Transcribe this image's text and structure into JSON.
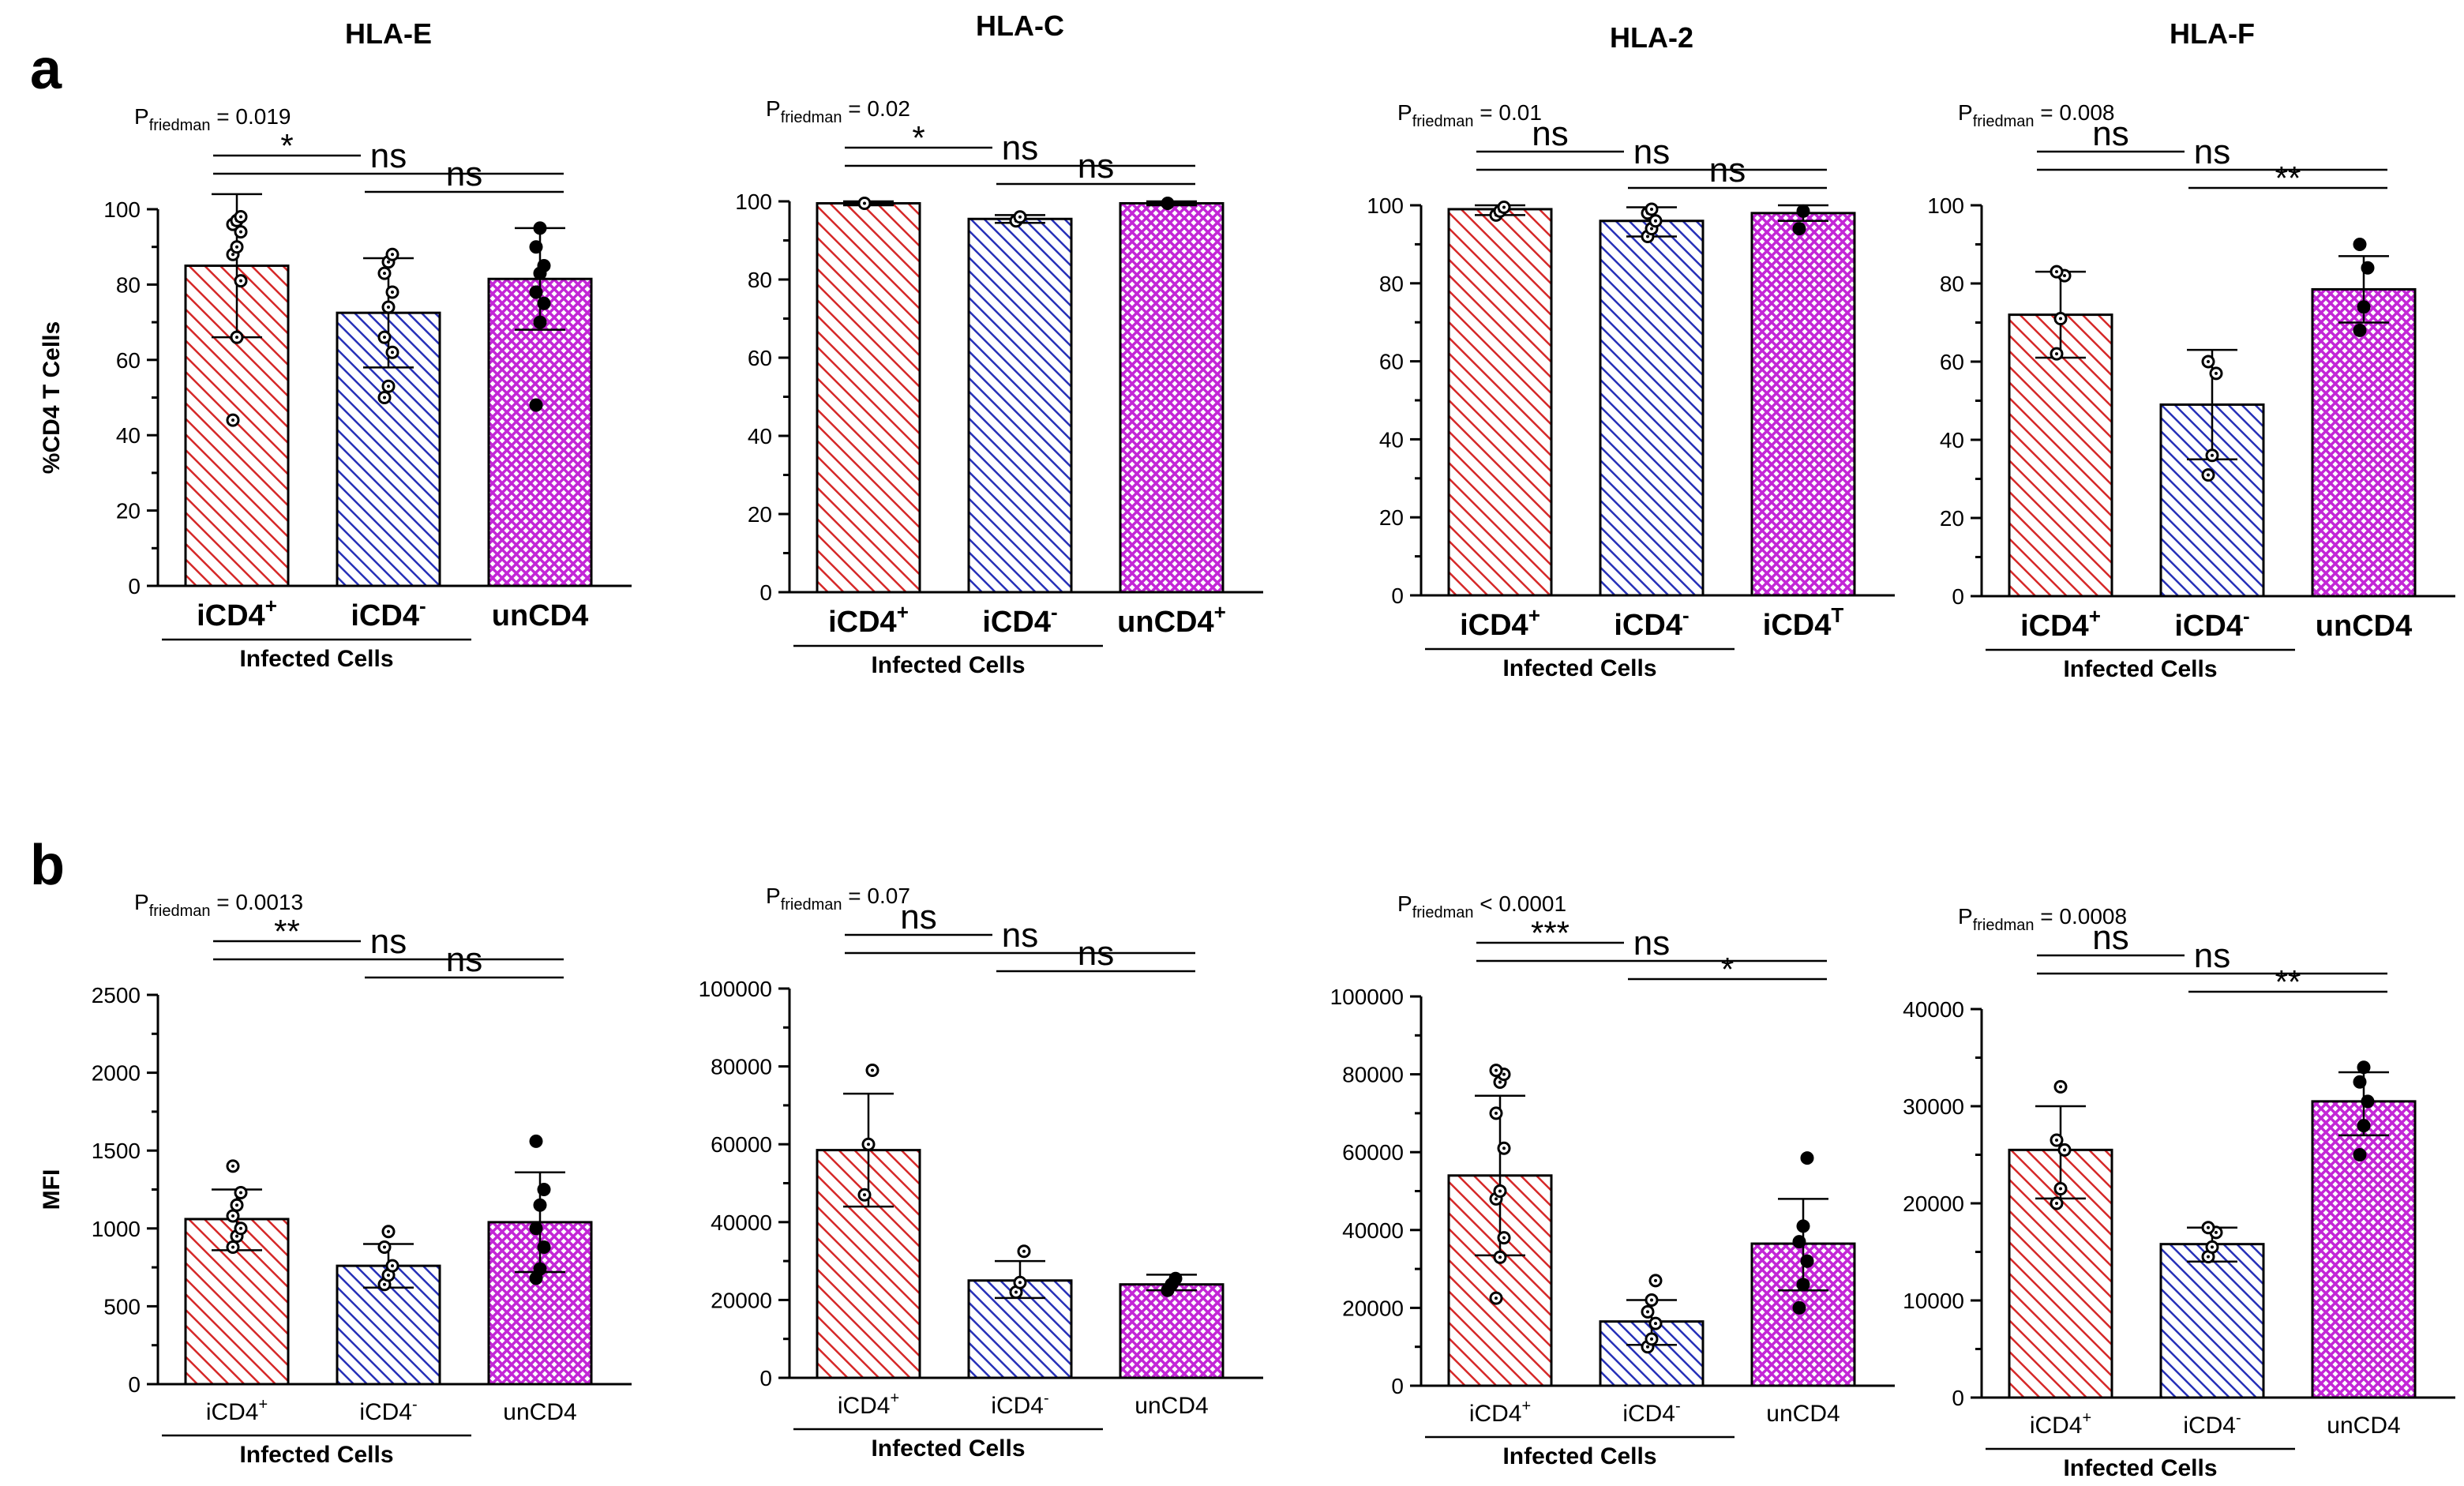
{
  "panel_letters": [
    "a",
    "b"
  ],
  "colors": {
    "iCD4+": "#d62828",
    "iCD4-": "#2630b8",
    "unCD4": "#c326d6"
  },
  "chart_data": [
    {
      "type": "bar",
      "row": "a",
      "title": "HLA-E",
      "ylabel": "%CD4 T Cells",
      "ylim": [
        0,
        100
      ],
      "yticks": [
        0,
        20,
        40,
        60,
        80,
        100
      ],
      "categories": [
        "iCD4+",
        "iCD4-",
        "unCD4"
      ],
      "cat_labels": [
        {
          "base": "iCD4",
          "sup": "+"
        },
        {
          "base": "iCD4",
          "sup": "-"
        },
        {
          "base": "unCD4",
          "sup": ""
        }
      ],
      "values": [
        85,
        72.5,
        81.5
      ],
      "error": [
        [
          66,
          104
        ],
        [
          58,
          87
        ],
        [
          68,
          95
        ]
      ],
      "points": [
        [
          44,
          66,
          81,
          88,
          90,
          94,
          96,
          97,
          98
        ],
        [
          50,
          53,
          62,
          66,
          74,
          78,
          83,
          86,
          88
        ],
        [
          48,
          70,
          75,
          78,
          83,
          85,
          90,
          95
        ]
      ],
      "group_label": "Infected Cells",
      "p_label": {
        "base": "P",
        "sub": "friedman",
        "rest": " = 0.019"
      },
      "sig": [
        {
          "from": 0,
          "to": 1,
          "label": "*"
        },
        {
          "from": 0,
          "to": 2,
          "label": "ns"
        },
        {
          "from": 1,
          "to": 2,
          "label": "ns"
        }
      ]
    },
    {
      "type": "bar",
      "row": "a",
      "title": "HLA-C",
      "ylabel": "",
      "ylim": [
        0,
        100
      ],
      "yticks": [
        0,
        20,
        40,
        60,
        80,
        100
      ],
      "categories": [
        "iCD4+",
        "iCD4-",
        "unCD4+"
      ],
      "cat_labels": [
        {
          "base": "iCD4",
          "sup": "+"
        },
        {
          "base": "iCD4",
          "sup": "-"
        },
        {
          "base": "unCD4",
          "sup": "+"
        }
      ],
      "values": [
        99.5,
        95.5,
        99.5
      ],
      "error": [
        [
          99,
          100
        ],
        [
          94.5,
          96.5
        ],
        [
          99,
          100
        ]
      ],
      "points": [
        [
          99.5
        ],
        [
          95,
          96
        ],
        [
          99.5
        ]
      ],
      "group_label": "Infected Cells",
      "p_label": {
        "base": "P",
        "sub": "friedman",
        "rest": " = 0.02"
      },
      "sig": [
        {
          "from": 0,
          "to": 1,
          "label": "*"
        },
        {
          "from": 0,
          "to": 2,
          "label": "ns"
        },
        {
          "from": 1,
          "to": 2,
          "label": "ns"
        }
      ]
    },
    {
      "type": "bar",
      "row": "a",
      "title": "HLA-2",
      "ylabel": "",
      "ylim": [
        0,
        100
      ],
      "yticks": [
        0,
        20,
        40,
        60,
        80,
        100
      ],
      "categories": [
        "iCD4+",
        "iCD4-",
        "iCD4T"
      ],
      "cat_labels": [
        {
          "base": "iCD4",
          "sup": "+"
        },
        {
          "base": "iCD4",
          "sup": "-"
        },
        {
          "base": "iCD4",
          "sup": "T"
        }
      ],
      "values": [
        99,
        96,
        98
      ],
      "error": [
        [
          97.5,
          100
        ],
        [
          92,
          99.5
        ],
        [
          96,
          100
        ]
      ],
      "points": [
        [
          97.5,
          98.5,
          99.5
        ],
        [
          92,
          94,
          96,
          98,
          99
        ],
        [
          94,
          98.5
        ]
      ],
      "group_label": "Infected Cells",
      "p_label": {
        "base": "P",
        "sub": "friedman",
        "rest": " = 0.01"
      },
      "sig": [
        {
          "from": 0,
          "to": 1,
          "label": "ns"
        },
        {
          "from": 0,
          "to": 2,
          "label": "ns"
        },
        {
          "from": 1,
          "to": 2,
          "label": "ns"
        }
      ]
    },
    {
      "type": "bar",
      "row": "a",
      "title": "HLA-F",
      "ylabel": "",
      "ylim": [
        0,
        100
      ],
      "yticks": [
        0,
        20,
        40,
        60,
        80,
        100
      ],
      "categories": [
        "iCD4+",
        "iCD4-",
        "unCD4"
      ],
      "cat_labels": [
        {
          "base": "iCD4",
          "sup": "+"
        },
        {
          "base": "iCD4",
          "sup": "-"
        },
        {
          "base": "unCD4",
          "sup": ""
        }
      ],
      "values": [
        72,
        49,
        78.5
      ],
      "error": [
        [
          61,
          83
        ],
        [
          35,
          63
        ],
        [
          70,
          87
        ]
      ],
      "points": [
        [
          62,
          71,
          82,
          83
        ],
        [
          31,
          36,
          57,
          60
        ],
        [
          68,
          74,
          84,
          90
        ]
      ],
      "group_label": "Infected Cells",
      "p_label": {
        "base": "P",
        "sub": "friedman",
        "rest": " = 0.008"
      },
      "sig": [
        {
          "from": 0,
          "to": 1,
          "label": "ns"
        },
        {
          "from": 0,
          "to": 2,
          "label": "ns"
        },
        {
          "from": 1,
          "to": 2,
          "label": "**"
        }
      ]
    },
    {
      "type": "bar",
      "row": "b",
      "title": "",
      "ylabel": "MFI",
      "ylim": [
        0,
        2500
      ],
      "yticks": [
        0,
        500,
        1000,
        1500,
        2000,
        2500
      ],
      "categories": [
        "iCD4+",
        "iCD4-",
        "unCD4"
      ],
      "cat_labels": [
        {
          "base": "iCD4",
          "sup": "+"
        },
        {
          "base": "iCD4",
          "sup": "-"
        },
        {
          "base": "unCD4",
          "sup": ""
        }
      ],
      "values": [
        1060,
        760,
        1040
      ],
      "error": [
        [
          860,
          1250
        ],
        [
          620,
          900
        ],
        [
          720,
          1360
        ]
      ],
      "points": [
        [
          880,
          950,
          1000,
          1080,
          1150,
          1230,
          1400
        ],
        [
          640,
          700,
          760,
          880,
          980
        ],
        [
          680,
          740,
          880,
          1000,
          1150,
          1250,
          1560
        ]
      ],
      "group_label": "Infected Cells",
      "p_label": {
        "base": "P",
        "sub": "friedman",
        "rest": " = 0.0013"
      },
      "sig": [
        {
          "from": 0,
          "to": 1,
          "label": "**"
        },
        {
          "from": 0,
          "to": 2,
          "label": "ns"
        },
        {
          "from": 1,
          "to": 2,
          "label": "ns"
        }
      ]
    },
    {
      "type": "bar",
      "row": "b",
      "title": "",
      "ylabel": "",
      "ylim": [
        0,
        100000
      ],
      "yticks": [
        0,
        20000,
        40000,
        60000,
        80000,
        100000
      ],
      "categories": [
        "iCD4+",
        "iCD4-",
        "unCD4"
      ],
      "cat_labels": [
        {
          "base": "iCD4",
          "sup": "+"
        },
        {
          "base": "iCD4",
          "sup": "-"
        },
        {
          "base": "unCD4",
          "sup": ""
        }
      ],
      "values": [
        58500,
        25000,
        24000
      ],
      "error": [
        [
          44000,
          73000
        ],
        [
          20500,
          30000
        ],
        [
          22500,
          26500
        ]
      ],
      "points": [
        [
          47000,
          60000,
          79000
        ],
        [
          22000,
          24500,
          32500
        ],
        [
          22500,
          24000,
          25500
        ]
      ],
      "group_label": "Infected Cells",
      "p_label": {
        "base": "P",
        "sub": "friedman",
        "rest": " = 0.07"
      },
      "sig": [
        {
          "from": 0,
          "to": 1,
          "label": "ns"
        },
        {
          "from": 0,
          "to": 2,
          "label": "ns"
        },
        {
          "from": 1,
          "to": 2,
          "label": "ns"
        }
      ]
    },
    {
      "type": "bar",
      "row": "b",
      "title": "",
      "ylabel": "",
      "ylim": [
        0,
        100000
      ],
      "yticks": [
        0,
        20000,
        40000,
        60000,
        80000,
        100000
      ],
      "categories": [
        "iCD4+",
        "iCD4-",
        "unCD4"
      ],
      "cat_labels": [
        {
          "base": "iCD4",
          "sup": "+"
        },
        {
          "base": "iCD4",
          "sup": "-"
        },
        {
          "base": "unCD4",
          "sup": ""
        }
      ],
      "values": [
        54000,
        16500,
        36500
      ],
      "error": [
        [
          33500,
          74500
        ],
        [
          10500,
          22000
        ],
        [
          24500,
          48000
        ]
      ],
      "points": [
        [
          22500,
          33000,
          38000,
          48000,
          50000,
          61000,
          70000,
          78000,
          80000,
          81000
        ],
        [
          10000,
          12000,
          16000,
          19000,
          22000,
          27000
        ],
        [
          20000,
          26000,
          32000,
          37000,
          41000,
          58500
        ]
      ],
      "group_label": "Infected Cells",
      "p_label": {
        "base": "P",
        "sub": "friedman",
        "rest": " < 0.0001"
      },
      "sig": [
        {
          "from": 0,
          "to": 1,
          "label": "***"
        },
        {
          "from": 0,
          "to": 2,
          "label": "ns"
        },
        {
          "from": 1,
          "to": 2,
          "label": "*"
        }
      ]
    },
    {
      "type": "bar",
      "row": "b",
      "title": "",
      "ylabel": "",
      "ylim": [
        0,
        40000
      ],
      "yticks": [
        0,
        10000,
        20000,
        30000,
        40000
      ],
      "categories": [
        "iCD4+",
        "iCD4-",
        "unCD4"
      ],
      "cat_labels": [
        {
          "base": "iCD4",
          "sup": "+"
        },
        {
          "base": "iCD4",
          "sup": "-"
        },
        {
          "base": "unCD4",
          "sup": ""
        }
      ],
      "values": [
        25500,
        15800,
        30500
      ],
      "error": [
        [
          20500,
          30000
        ],
        [
          14000,
          17500
        ],
        [
          27000,
          33500
        ]
      ],
      "points": [
        [
          20000,
          21500,
          25500,
          26500,
          32000
        ],
        [
          14500,
          15500,
          17000,
          17500
        ],
        [
          25000,
          28000,
          30500,
          32500,
          34000
        ]
      ],
      "group_label": "Infected Cells",
      "p_label": {
        "base": "P",
        "sub": "friedman",
        "rest": " = 0.0008"
      },
      "sig": [
        {
          "from": 0,
          "to": 1,
          "label": "ns"
        },
        {
          "from": 0,
          "to": 2,
          "label": "ns"
        },
        {
          "from": 1,
          "to": 2,
          "label": "**"
        }
      ]
    }
  ]
}
